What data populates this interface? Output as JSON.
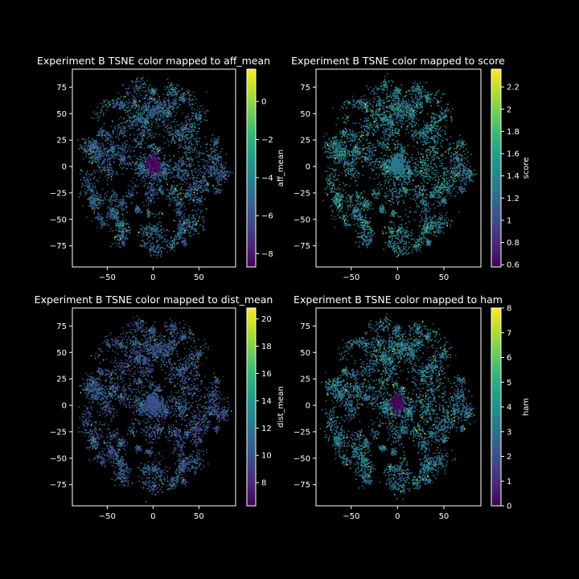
{
  "figure": {
    "background": "#000000",
    "axis_color": "#ffffff"
  },
  "colormap": [
    "#440154",
    "#482878",
    "#3e4989",
    "#31688e",
    "#26828e",
    "#1f9e89",
    "#35b779",
    "#6ece58",
    "#b5de2b",
    "#fde725"
  ],
  "chart_data": [
    {
      "type": "scatter",
      "title": "Experiment B TSNE color mapped to aff_mean",
      "xlim": [
        -88,
        90
      ],
      "ylim": [
        -95,
        92
      ],
      "xticks": [
        -50,
        0,
        50
      ],
      "yticks": [
        -75,
        -50,
        -25,
        0,
        25,
        50,
        75
      ],
      "grid": false,
      "colorbar": {
        "label": "aff_mean",
        "range": [
          -8.7,
          1.7
        ],
        "ticks": [
          -8,
          -6,
          -4,
          -2,
          0
        ]
      },
      "description_values": {
        "center_cluster_value": -8.5,
        "typical_value": -5.5
      }
    },
    {
      "type": "scatter",
      "title": "Experiment B TSNE color mapped to score",
      "xlim": [
        -88,
        90
      ],
      "ylim": [
        -95,
        92
      ],
      "xticks": [
        -50,
        0,
        50
      ],
      "yticks": [
        -75,
        -50,
        -25,
        0,
        25,
        50,
        75
      ],
      "grid": false,
      "colorbar": {
        "label": "score",
        "range": [
          0.58,
          2.36
        ],
        "ticks": [
          0.6,
          0.8,
          1.0,
          1.2,
          1.4,
          1.6,
          1.8,
          2.0,
          2.2
        ]
      },
      "description_values": {
        "center_cluster_value": 1.3,
        "typical_value": 1.3
      }
    },
    {
      "type": "scatter",
      "title": "Experiment B TSNE color mapped to dist_mean",
      "xlim": [
        -88,
        90
      ],
      "ylim": [
        -95,
        92
      ],
      "xticks": [
        -50,
        0,
        50
      ],
      "yticks": [
        -75,
        -50,
        -25,
        0,
        25,
        50,
        75
      ],
      "grid": false,
      "colorbar": {
        "label": "dist_mean",
        "range": [
          6.3,
          20.8
        ],
        "ticks": [
          8,
          10,
          12,
          14,
          16,
          18,
          20
        ]
      },
      "description_values": {
        "center_cluster_value": 10,
        "typical_value": 10
      }
    },
    {
      "type": "scatter",
      "title": "Experiment B TSNE color mapped to ham",
      "xlim": [
        -88,
        90
      ],
      "ylim": [
        -95,
        92
      ],
      "xticks": [
        -50,
        0,
        50
      ],
      "yticks": [
        -75,
        -50,
        -25,
        0,
        25,
        50,
        75
      ],
      "grid": false,
      "colorbar": {
        "label": "ham",
        "range": [
          0,
          8
        ],
        "ticks": [
          0,
          1,
          2,
          3,
          4,
          5,
          6,
          7,
          8
        ]
      },
      "description_values": {
        "center_cluster_value": 0,
        "typical_value": 3
      }
    }
  ]
}
